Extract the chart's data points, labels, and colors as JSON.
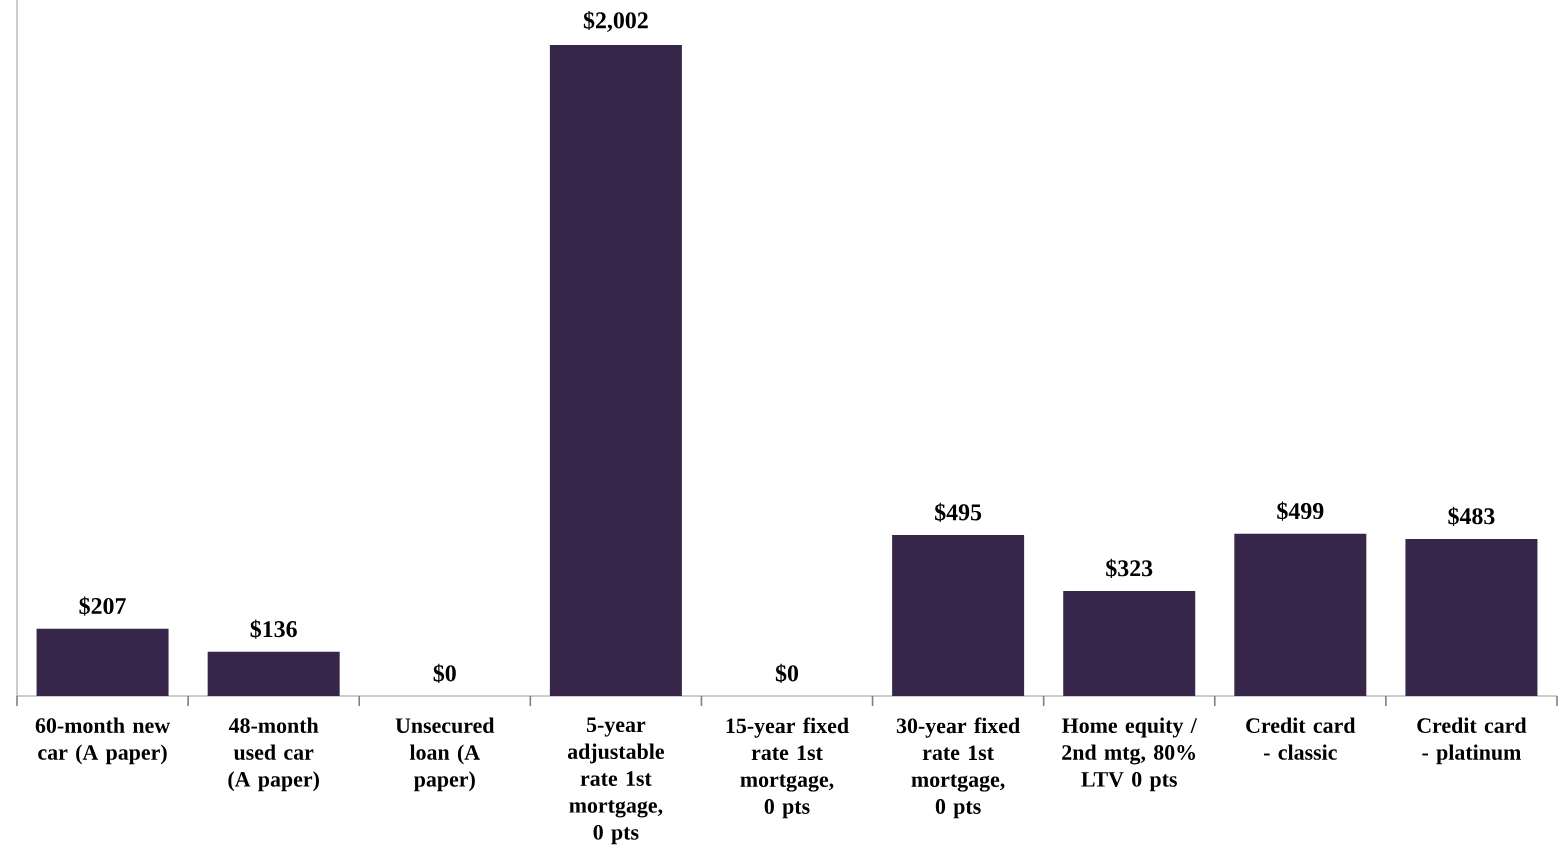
{
  "chart_data": {
    "type": "bar",
    "categories": [
      "60-month new car (A paper)",
      "48-month used car (A paper)",
      "Unsecured loan (A paper)",
      "5-year adjustable rate 1st mortgage, 0 pts",
      "15-year fixed rate 1st mortgage, 0 pts",
      "30-year fixed rate 1st mortgage, 0 pts",
      "Home equity / 2nd mtg, 80% LTV 0 pts",
      "Credit card - classic",
      "Credit card - platinum"
    ],
    "values": [
      207,
      136,
      0,
      2002,
      0,
      495,
      323,
      499,
      483
    ],
    "value_labels": [
      "$207",
      "$136",
      "$0",
      "$2,002",
      "$0",
      "$495",
      "$323",
      "$499",
      "$483"
    ],
    "color": "#372649"
  }
}
